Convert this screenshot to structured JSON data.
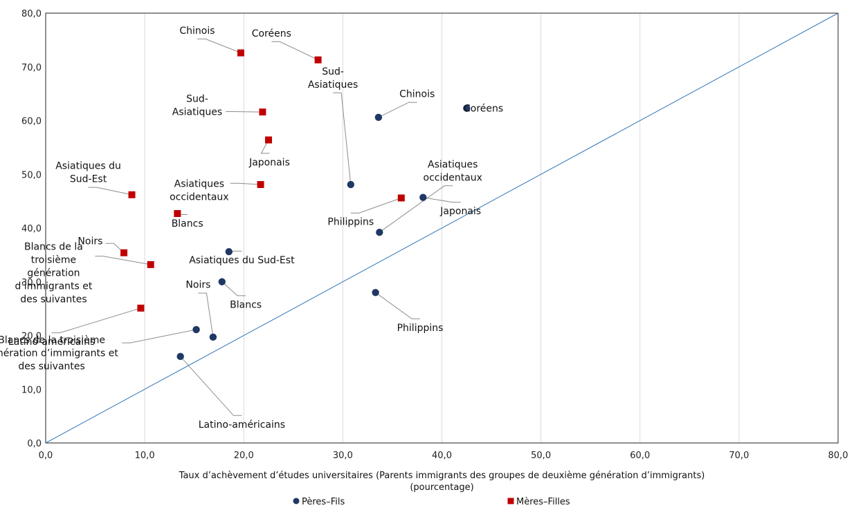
{
  "chart_data": {
    "type": "scatter",
    "xlabel": [
      "Taux d’achèvement d’études universitaires (Parents immigrants des groupes de deuxième génération d’immigrants)",
      "(pourcentage)"
    ],
    "ylabel": "",
    "xlim": [
      0,
      80
    ],
    "ylim": [
      0,
      80
    ],
    "x_ticks": [
      "0,0",
      "10,0",
      "20,0",
      "30,0",
      "40,0",
      "50,0",
      "60,0",
      "70,0",
      "80,0"
    ],
    "y_ticks": [
      "0,0",
      "10,0",
      "20,0",
      "30,0",
      "40,0",
      "50,0",
      "60,0",
      "70,0",
      "80,0"
    ],
    "grid": "vertical",
    "legend_position": "bottom",
    "reference_line": {
      "x": [
        0,
        80
      ],
      "y": [
        0,
        80
      ],
      "color": "#2e75b6"
    },
    "series": [
      {
        "name": "Pères–Fils",
        "marker": "circle",
        "color": "#1f3864",
        "points": [
          {
            "label": [
              "Coréens"
            ],
            "x": 42.5,
            "y": 62.3,
            "label_pos": [
              44.2,
              62.3
            ],
            "leader": false
          },
          {
            "label": [
              "Chinois"
            ],
            "x": 33.6,
            "y": 60.6,
            "label_pos": [
              37.5,
              65.0
            ],
            "leader": true
          },
          {
            "label": [
              "Sud-",
              "Asiatiques"
            ],
            "x": 30.8,
            "y": 48.1,
            "label_pos": [
              29.0,
              68.0
            ],
            "leader": true
          },
          {
            "label": [
              "Japonais"
            ],
            "x": 38.1,
            "y": 45.7,
            "label_pos": [
              41.9,
              43.2
            ],
            "leader": true
          },
          {
            "label": [
              "Asiatiques",
              "occidentaux"
            ],
            "x": 33.7,
            "y": 39.2,
            "label_pos": [
              41.1,
              50.7
            ],
            "leader": true
          },
          {
            "label": [
              "Asiatiques du Sud-Est"
            ],
            "x": 18.5,
            "y": 35.6,
            "label_pos": [
              19.8,
              34.1
            ],
            "leader": true
          },
          {
            "label": [
              "Blancs"
            ],
            "x": 17.8,
            "y": 30.0,
            "label_pos": [
              20.2,
              25.8
            ],
            "leader": true
          },
          {
            "label": [
              "Philippins"
            ],
            "x": 33.3,
            "y": 28.0,
            "label_pos": [
              37.8,
              21.5
            ],
            "leader": true
          },
          {
            "label": [
              "Noirs"
            ],
            "x": 16.9,
            "y": 19.7,
            "label_pos": [
              15.4,
              29.5
            ],
            "leader": true
          },
          {
            "label": [
              "Blancs de la troisième",
              "génération d’immigrants et",
              "des suivantes"
            ],
            "x": 15.2,
            "y": 21.1,
            "label_pos": [
              0.6,
              16.8
            ],
            "leader": true
          },
          {
            "label": [
              "Latino-américains"
            ],
            "x": 13.6,
            "y": 16.1,
            "label_pos": [
              19.8,
              3.5
            ],
            "leader": true
          }
        ]
      },
      {
        "name": "Mères–Filles",
        "marker": "square",
        "color": "#c00000",
        "points": [
          {
            "label": [
              "Chinois"
            ],
            "x": 19.7,
            "y": 72.6,
            "label_pos": [
              15.3,
              76.8
            ],
            "leader": true
          },
          {
            "label": [
              "Coréens"
            ],
            "x": 27.5,
            "y": 71.3,
            "label_pos": [
              22.8,
              76.3
            ],
            "leader": true
          },
          {
            "label": [
              "Sud-",
              "Asiatiques"
            ],
            "x": 21.9,
            "y": 61.6,
            "label_pos": [
              15.3,
              62.9
            ],
            "leader": true
          },
          {
            "label": [
              "Japonais"
            ],
            "x": 22.5,
            "y": 56.4,
            "label_pos": [
              22.6,
              52.3
            ],
            "leader": true
          },
          {
            "label": [
              "Asiatiques",
              "occidentaux"
            ],
            "x": 21.7,
            "y": 48.1,
            "label_pos": [
              15.5,
              47.1
            ],
            "leader": true
          },
          {
            "label": [
              "Asiatiques du",
              "Sud-Est"
            ],
            "x": 8.7,
            "y": 46.2,
            "label_pos": [
              4.3,
              50.4
            ],
            "leader": true
          },
          {
            "label": [
              "Philippins"
            ],
            "x": 35.9,
            "y": 45.6,
            "label_pos": [
              30.8,
              41.2
            ],
            "leader": true
          },
          {
            "label": [
              "Blancs"
            ],
            "x": 13.3,
            "y": 42.7,
            "label_pos": [
              14.3,
              40.9
            ],
            "leader": true
          },
          {
            "label": [
              "Noirs"
            ],
            "x": 7.9,
            "y": 35.4,
            "label_pos": [
              4.5,
              37.6
            ],
            "leader": true
          },
          {
            "label": [
              "Blancs de la",
              "troisième",
              "génération",
              "d’immigrants et",
              "des suivantes"
            ],
            "x": 10.6,
            "y": 33.2,
            "label_pos": [
              0.8,
              31.7
            ],
            "leader": true
          },
          {
            "label": [
              "Latino-américains"
            ],
            "x": 9.6,
            "y": 25.1,
            "label_pos": [
              0.6,
              18.9
            ],
            "leader": true
          }
        ]
      }
    ]
  }
}
